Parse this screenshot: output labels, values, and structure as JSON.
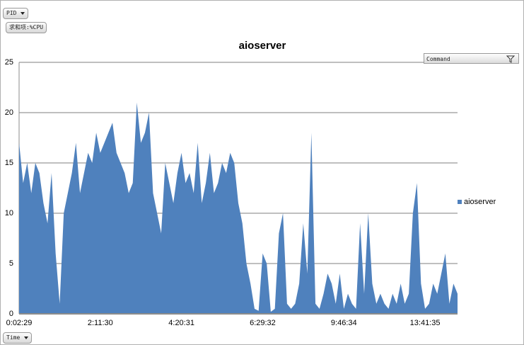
{
  "chart_data": {
    "type": "area",
    "title": "aioserver",
    "categories": [
      "0:02:29",
      null,
      null,
      null,
      null,
      null,
      null,
      null,
      null,
      null,
      null,
      null,
      null,
      null,
      null,
      null,
      null,
      null,
      null,
      null,
      "2:11:30",
      null,
      null,
      null,
      null,
      null,
      null,
      null,
      null,
      null,
      null,
      null,
      null,
      null,
      null,
      null,
      null,
      null,
      null,
      null,
      "4:20:31",
      null,
      null,
      null,
      null,
      null,
      null,
      null,
      null,
      null,
      null,
      null,
      null,
      null,
      null,
      null,
      null,
      null,
      null,
      null,
      "6:29:32",
      null,
      null,
      null,
      null,
      null,
      null,
      null,
      null,
      null,
      null,
      null,
      null,
      null,
      null,
      null,
      null,
      null,
      null,
      null,
      "9:46:34",
      null,
      null,
      null,
      null,
      null,
      null,
      null,
      null,
      null,
      null,
      null,
      null,
      null,
      null,
      null,
      null,
      null,
      null,
      null,
      "13:41:35",
      null,
      null,
      null,
      null,
      null,
      null,
      null,
      null
    ],
    "series": [
      {
        "name": "aioserver",
        "color": "#4f81bd",
        "values": [
          17,
          13,
          15,
          12,
          15,
          14,
          11,
          9,
          14,
          6,
          1,
          10,
          12,
          14,
          17,
          12,
          14,
          16,
          15,
          18,
          16,
          17,
          18,
          19,
          16,
          15,
          14,
          12,
          13,
          21,
          17,
          18,
          20,
          12,
          10,
          8,
          15,
          13,
          11,
          14,
          16,
          13,
          14,
          12,
          17,
          11,
          13,
          16,
          12,
          13,
          15,
          14,
          16,
          15,
          11,
          9,
          5,
          3,
          0.5,
          0.3,
          6,
          5,
          0.2,
          0.5,
          8,
          10,
          1,
          0.5,
          1,
          3,
          9,
          4,
          18,
          1,
          0.5,
          2,
          4,
          3,
          1,
          4,
          0.5,
          2,
          1,
          0.5,
          9,
          2,
          10,
          3,
          1,
          2,
          1,
          0.5,
          2,
          1,
          3,
          1,
          2,
          10,
          13,
          3,
          0.5,
          1,
          3,
          2,
          4,
          6,
          1,
          3,
          2
        ]
      }
    ],
    "ylim": [
      0,
      25
    ],
    "yticks": [
      0,
      5,
      10,
      15,
      20,
      25
    ],
    "grid": true
  },
  "controls": {
    "row_field": "PID",
    "value_field": "求和项:%CPU",
    "filter_field": "Command",
    "axis_field": "Time"
  }
}
